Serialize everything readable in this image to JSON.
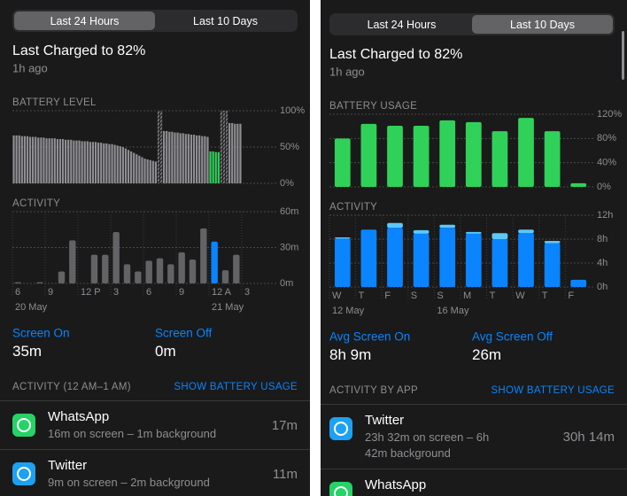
{
  "panels": [
    {
      "segments": [
        "Last 24 Hours",
        "Last 10 Days"
      ],
      "selected_segment": 0,
      "charged_title": "Last Charged to 82%",
      "charged_time": "1h ago",
      "battery_chart": {
        "type": "bar",
        "title": "BATTERY LEVEL",
        "ylim": [
          0,
          100
        ],
        "yticks": [
          {
            "value": 0,
            "label": "0%"
          },
          {
            "value": 50,
            "label": "50%"
          },
          {
            "value": 100,
            "label": "100%"
          }
        ],
        "grid": true,
        "series": [
          {
            "color": "#8e8e93",
            "values": [
              66,
              66,
              66,
              65,
              65,
              65,
              64,
              64,
              64,
              63,
              63,
              63,
              62,
              62,
              62,
              62,
              61,
              61,
              61,
              60,
              60,
              60,
              59,
              59,
              59,
              58,
              58,
              58,
              57,
              57,
              57,
              56,
              56,
              55,
              55,
              54,
              54,
              53,
              52,
              51,
              50,
              48,
              46,
              44,
              42,
              40,
              38,
              36,
              34,
              33,
              32,
              31,
              30,
              null,
              null,
              72,
              72,
              71,
              71,
              70,
              70,
              69,
              69,
              68,
              68,
              67,
              67,
              66,
              66,
              65,
              65,
              64,
              null,
              null,
              null,
              null,
              null,
              null,
              null,
              83,
              83,
              82,
              82,
              82,
              null,
              null,
              null,
              null,
              null,
              null,
              null,
              null,
              null,
              null,
              null,
              null
            ]
          },
          {
            "color": "#8e8e93",
            "hatched": true,
            "values": [
              null,
              null,
              null,
              null,
              null,
              null,
              null,
              null,
              null,
              null,
              null,
              null,
              null,
              null,
              null,
              null,
              null,
              null,
              null,
              null,
              null,
              null,
              null,
              null,
              null,
              null,
              null,
              null,
              null,
              null,
              null,
              null,
              null,
              null,
              null,
              null,
              null,
              null,
              null,
              null,
              null,
              null,
              null,
              null,
              null,
              null,
              null,
              null,
              null,
              null,
              null,
              null,
              null,
              100,
              100,
              null,
              null,
              null,
              null,
              null,
              null,
              null,
              null,
              null,
              null,
              null,
              null,
              null,
              null,
              null,
              null,
              null,
              null,
              null,
              null,
              null,
              100,
              100,
              100,
              null,
              null,
              null,
              null,
              null,
              null,
              null,
              null,
              null,
              null,
              null,
              null,
              null,
              null,
              null,
              null,
              null
            ]
          },
          {
            "color": "#30d158",
            "values": [
              null,
              null,
              null,
              null,
              null,
              null,
              null,
              null,
              null,
              null,
              null,
              null,
              null,
              null,
              null,
              null,
              null,
              null,
              null,
              null,
              null,
              null,
              null,
              null,
              null,
              null,
              null,
              null,
              null,
              null,
              null,
              null,
              null,
              null,
              null,
              null,
              null,
              null,
              null,
              null,
              null,
              null,
              null,
              null,
              null,
              null,
              null,
              null,
              null,
              null,
              null,
              null,
              null,
              null,
              null,
              null,
              null,
              null,
              null,
              null,
              null,
              null,
              null,
              null,
              null,
              null,
              null,
              null,
              null,
              null,
              null,
              null,
              44,
              44,
              43,
              43,
              null,
              null,
              null,
              null,
              null,
              null,
              null,
              null,
              null,
              null,
              null,
              null,
              null,
              null,
              null,
              null,
              null,
              null,
              null,
              null
            ]
          }
        ]
      },
      "activity_chart": {
        "type": "bar",
        "title": "ACTIVITY",
        "ylim": [
          0,
          60
        ],
        "yticks": [
          {
            "value": 0,
            "label": "0m"
          },
          {
            "value": 30,
            "label": "30m"
          },
          {
            "value": 60,
            "label": "60m"
          }
        ],
        "grid": true,
        "categories": [
          "6",
          null,
          null,
          "9",
          null,
          null,
          "12 P",
          null,
          null,
          "3",
          null,
          null,
          "6",
          null,
          null,
          "9",
          null,
          null,
          "12 A",
          null,
          null,
          "3",
          null,
          null
        ],
        "dates": [
          "20 May",
          null,
          null,
          null,
          null,
          null,
          null,
          null,
          null,
          null,
          null,
          null,
          null,
          null,
          null,
          null,
          null,
          null,
          "21 May",
          null,
          null,
          null,
          null,
          null
        ],
        "highlight": 18,
        "highlight_color": "#0a84ff",
        "series": [
          {
            "color": "#636366",
            "values": [
              1,
              0,
              1,
              0,
              10,
              36,
              0,
              24,
              24,
              43,
              16,
              10,
              19,
              21,
              16,
              26,
              20,
              46,
              35,
              11,
              24,
              0,
              0,
              0
            ]
          }
        ]
      },
      "stats": [
        {
          "label": "Screen On",
          "value": "35m"
        },
        {
          "label": "Screen Off",
          "value": "0m"
        }
      ],
      "section": {
        "title": "ACTIVITY (12 AM–1 AM)",
        "action": "SHOW BATTERY USAGE"
      },
      "apps": [
        {
          "name": "WhatsApp",
          "detail": "16m on screen – 1m background",
          "total": "17m",
          "color": "#25d366"
        },
        {
          "name": "Twitter",
          "detail": "9m on screen – 2m background",
          "total": "11m",
          "color": "#1da1f2"
        }
      ]
    },
    {
      "segments": [
        "Last 24 Hours",
        "Last 10 Days"
      ],
      "selected_segment": 1,
      "charged_title": "Last Charged to 82%",
      "charged_time": "1h ago",
      "battery_chart": {
        "type": "bar",
        "title": "BATTERY USAGE",
        "ylim": [
          0,
          120
        ],
        "yticks": [
          {
            "value": 0,
            "label": "0%"
          },
          {
            "value": 40,
            "label": "40%"
          },
          {
            "value": 80,
            "label": "80%"
          },
          {
            "value": 120,
            "label": "120%"
          }
        ],
        "grid": true,
        "series": [
          {
            "color": "#30d158",
            "values": [
              80,
              104,
              101,
              101,
              110,
              107,
              92,
              114,
              92,
              6
            ]
          }
        ]
      },
      "activity_chart": {
        "type": "bar",
        "title": "ACTIVITY",
        "ylim": [
          0,
          12
        ],
        "yticks": [
          {
            "value": 0,
            "label": "0h"
          },
          {
            "value": 4,
            "label": "4h"
          },
          {
            "value": 8,
            "label": "8h"
          },
          {
            "value": 12,
            "label": "12h"
          }
        ],
        "grid": true,
        "categories": [
          "W",
          "T",
          "F",
          "S",
          "S",
          "M",
          "T",
          "W",
          "T",
          "F"
        ],
        "dates": [
          "12 May",
          null,
          null,
          null,
          "16 May",
          null,
          null,
          null,
          null,
          null
        ],
        "stacked": true,
        "series": [
          {
            "color": "#0a84ff",
            "values": [
              8.1,
              9.6,
              9.9,
              8.9,
              9.9,
              8.9,
              8.0,
              9.0,
              7.3,
              1.2
            ]
          },
          {
            "color": "#5ac8fa",
            "values": [
              0.2,
              0,
              0.8,
              0.6,
              0.5,
              0.3,
              1.0,
              0.6,
              0.4,
              0
            ]
          }
        ]
      },
      "stats": [
        {
          "label": "Avg Screen On",
          "value": "8h 9m"
        },
        {
          "label": "Avg Screen Off",
          "value": "26m"
        }
      ],
      "section": {
        "title": "ACTIVITY BY APP",
        "action": "SHOW BATTERY USAGE"
      },
      "apps": [
        {
          "name": "Twitter",
          "detail": "23h 32m on screen – 6h 42m background",
          "total": "30h 14m",
          "color": "#1da1f2"
        },
        {
          "name": "WhatsApp",
          "color": "#25d366"
        }
      ]
    }
  ]
}
